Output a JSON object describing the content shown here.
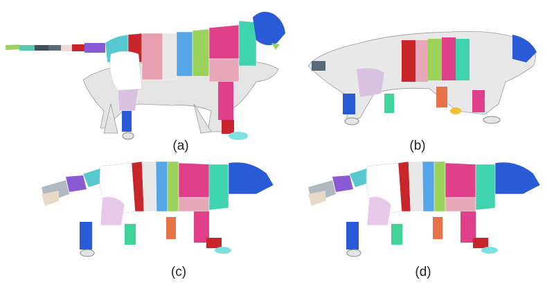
{
  "figure": {
    "panels": [
      {
        "label": "(a)"
      },
      {
        "label": "(b)"
      },
      {
        "label": "(c)"
      },
      {
        "label": "(d)"
      }
    ]
  },
  "colors": {
    "mesh_gray": "#e6e6e6",
    "head_blue": "#2a5bd6",
    "red": "#c8262a",
    "pink": "#e0408a",
    "light_pink": "#e6a8b8",
    "lavender": "#d9c2e0",
    "green": "#9bd35a",
    "sky_blue": "#55a6e6",
    "teal": "#3fd3b0",
    "orange": "#e8734a",
    "purple": "#8a5ad6"
  }
}
